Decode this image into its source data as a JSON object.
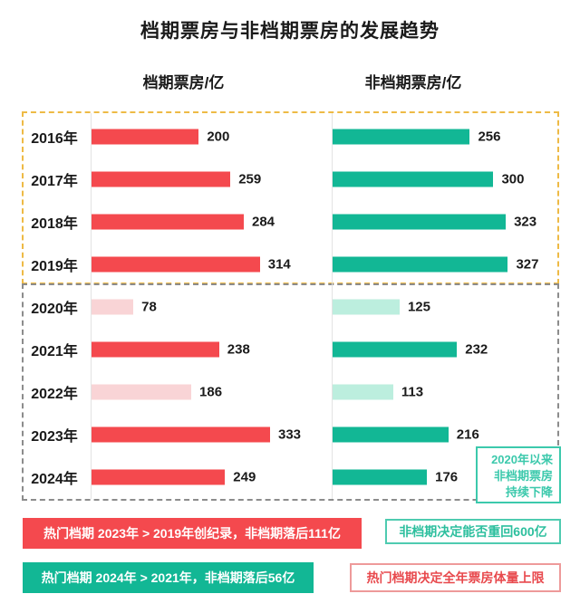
{
  "title": "档期票房与非档期票房的发展趋势",
  "columns": {
    "left": "档期票房/亿",
    "right": "非档期票房/亿"
  },
  "chart_data": {
    "type": "bar",
    "orientation": "horizontal",
    "categories": [
      "2016年",
      "2017年",
      "2018年",
      "2019年",
      "2020年",
      "2021年",
      "2022年",
      "2023年",
      "2024年"
    ],
    "series": [
      {
        "name": "档期票房/亿",
        "values": [
          200,
          259,
          284,
          314,
          78,
          238,
          186,
          333,
          249
        ]
      },
      {
        "name": "非档期票房/亿",
        "values": [
          256,
          300,
          323,
          327,
          125,
          232,
          113,
          216,
          176
        ]
      }
    ],
    "dimmed_categories": [
      "2020年",
      "2022年"
    ],
    "value_unit": "亿",
    "xlim": [
      0,
      350
    ],
    "groups": [
      {
        "label": "2016年-2019年",
        "categories": [
          "2016年",
          "2017年",
          "2018年",
          "2019年"
        ]
      },
      {
        "label": "2020年-2024年",
        "categories": [
          "2020年",
          "2021年",
          "2022年",
          "2023年",
          "2024年"
        ]
      }
    ]
  },
  "annotations": {
    "decline_note": {
      "lines": [
        "2020年以来",
        "非档期票房",
        "持续下降"
      ],
      "color": "#3cc9ac"
    },
    "callouts": [
      {
        "text": "热门档期 2023年 > 2019年创纪录，非档期落后111亿",
        "style": "filled",
        "bg": "#f4494e",
        "fg": "#ffffff"
      },
      {
        "text": "非档期决定能否重回600亿",
        "style": "outlined",
        "border": "#4ecbb0",
        "fg": "#2dbf9e"
      },
      {
        "text": "热门档期 2024年 > 2021年，非档期落后56亿",
        "style": "filled",
        "bg": "#12b795",
        "fg": "#ffffff"
      },
      {
        "text": "热门档期决定全年票房体量上限",
        "style": "outlined",
        "border": "#ee9a9a",
        "fg": "#e8494d"
      }
    ]
  },
  "colors": {
    "bar_red": "#f4494e",
    "bar_red_dim": "#f9d4d6",
    "bar_green": "#12b795",
    "bar_green_dim": "#bceede",
    "group1_border": "#eeba45",
    "group2_border": "#8c8c8c",
    "axis_line": "#e3e3e3",
    "text": "#1a1a1a"
  }
}
